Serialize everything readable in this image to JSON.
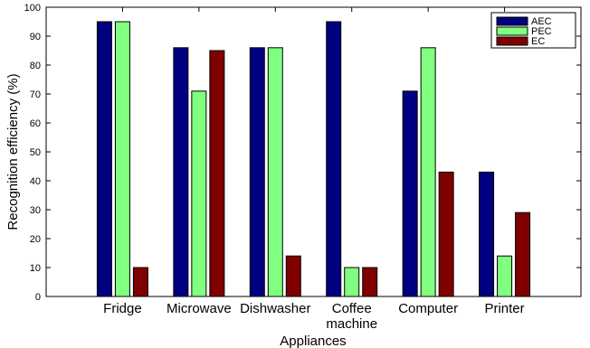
{
  "chart_data": {
    "type": "bar",
    "categories": [
      [
        "Fridge"
      ],
      [
        "Microwave"
      ],
      [
        "Dishwasher"
      ],
      [
        "Coffee",
        "machine"
      ],
      [
        "Computer"
      ],
      [
        "Printer"
      ]
    ],
    "series": [
      {
        "name": "AEC",
        "color": "#000080",
        "values": [
          95,
          86,
          86,
          95,
          71,
          43
        ]
      },
      {
        "name": "PEC",
        "color": "#80ff80",
        "values": [
          95,
          71,
          86,
          10,
          86,
          14
        ]
      },
      {
        "name": "EC",
        "color": "#800000",
        "values": [
          10,
          85,
          14,
          10,
          43,
          29
        ]
      }
    ],
    "xlabel": "Appliances",
    "ylabel": "Recognition efficiency (%)",
    "ylim": [
      0,
      100
    ],
    "yticks": [
      0,
      10,
      20,
      30,
      40,
      50,
      60,
      70,
      80,
      90,
      100
    ],
    "grid": false,
    "legend_position": "top-right"
  }
}
